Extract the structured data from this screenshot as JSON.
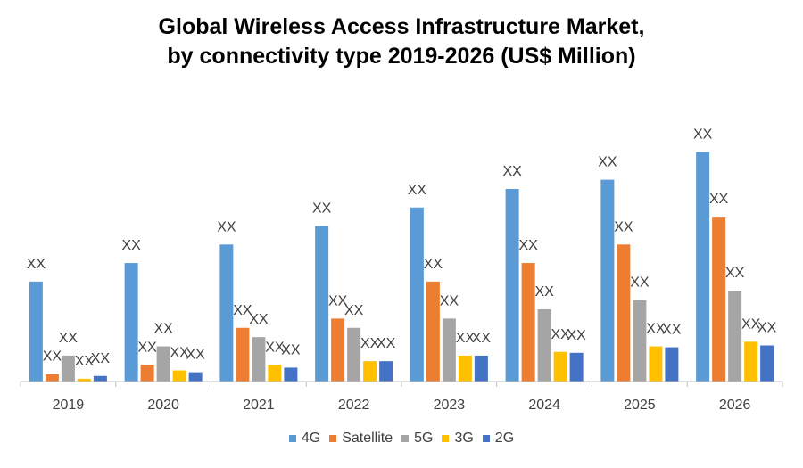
{
  "title_line1": "Global Wireless Access Infrastructure Market,",
  "title_line2": "by connectivity type 2019-2026 (US$ Million)",
  "chart_data": {
    "type": "bar",
    "title": "Global Wireless Access Infrastructure Market, by connectivity type 2019-2026 (US$ Million)",
    "categories": [
      "2019",
      "2020",
      "2021",
      "2022",
      "2023",
      "2024",
      "2025",
      "2026"
    ],
    "series": [
      {
        "name": "4G",
        "color": "#5B9BD5",
        "values": [
          54,
          64,
          74,
          84,
          94,
          104,
          109,
          124
        ],
        "labels": [
          "XX",
          "XX",
          "XX",
          "XX",
          "XX",
          "XX",
          "XX",
          "XX"
        ]
      },
      {
        "name": "Satellite",
        "color": "#ED7D31",
        "values": [
          4,
          9,
          29,
          34,
          54,
          64,
          74,
          89
        ],
        "labels": [
          "XX",
          "XX",
          "XX",
          "XX",
          "XX",
          "XX",
          "XX",
          "XX"
        ]
      },
      {
        "name": "5G",
        "color": "#A5A5A5",
        "values": [
          14,
          19,
          24,
          29,
          34,
          39,
          44,
          49
        ],
        "labels": [
          "XX",
          "XX",
          "XX",
          "XX",
          "XX",
          "XX",
          "XX",
          "XX"
        ]
      },
      {
        "name": "3G",
        "color": "#FFC000",
        "values": [
          1.5,
          6,
          9,
          11,
          14,
          16,
          19,
          21.5
        ],
        "labels": [
          "XX",
          "XX",
          "XX",
          "XX",
          "XX",
          "XX",
          "XX",
          "XX"
        ]
      },
      {
        "name": "2G",
        "color": "#4472C4",
        "values": [
          3,
          5,
          7.5,
          11,
          14,
          15.5,
          18.5,
          19.5
        ],
        "labels": [
          "XX",
          "XX",
          "XX",
          "XX",
          "XX",
          "XX",
          "XX",
          "XX"
        ]
      }
    ],
    "ylim": [
      0,
      130
    ],
    "grid": false,
    "legend_position": "bottom"
  }
}
